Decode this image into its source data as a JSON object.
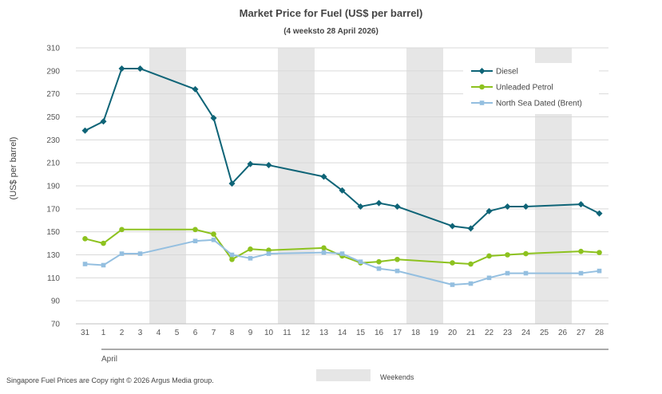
{
  "chart_data": {
    "type": "line",
    "title": "Market Price for Fuel (US$ per barrel)",
    "subtitle": "(4 weeksto 28 April 2026)",
    "ylabel": "(US$ per barrel)",
    "xlabel": "April",
    "ylim": [
      70,
      310
    ],
    "yticks": [
      70,
      90,
      110,
      130,
      150,
      170,
      190,
      210,
      230,
      250,
      270,
      290,
      310
    ],
    "categories": [
      "31",
      "1",
      "2",
      "3",
      "4",
      "5",
      "6",
      "7",
      "8",
      "9",
      "10",
      "11",
      "12",
      "13",
      "14",
      "15",
      "16",
      "17",
      "18",
      "19",
      "20",
      "21",
      "22",
      "23",
      "24",
      "25",
      "26",
      "27",
      "28"
    ],
    "weekend_spans": [
      [
        "4",
        "5"
      ],
      [
        "11",
        "12"
      ],
      [
        "18",
        "19"
      ],
      [
        "25",
        "26"
      ]
    ],
    "series": [
      {
        "name": "Diesel",
        "color": "#0e6477",
        "marker": "diamond",
        "points": [
          [
            "31",
            238
          ],
          [
            "1",
            246
          ],
          [
            "2",
            292
          ],
          [
            "3",
            292
          ],
          [
            "6",
            274
          ],
          [
            "7",
            249
          ],
          [
            "8",
            192
          ],
          [
            "9",
            209
          ],
          [
            "10",
            208
          ],
          [
            "13",
            198
          ],
          [
            "14",
            186
          ],
          [
            "15",
            172
          ],
          [
            "16",
            175
          ],
          [
            "17",
            172
          ],
          [
            "20",
            155
          ],
          [
            "21",
            153
          ],
          [
            "22",
            168
          ],
          [
            "23",
            172
          ],
          [
            "24",
            172
          ],
          [
            "27",
            174
          ],
          [
            "28",
            166
          ]
        ]
      },
      {
        "name": "Unleaded Petrol",
        "color": "#8dc21f",
        "marker": "circle",
        "points": [
          [
            "31",
            144
          ],
          [
            "1",
            140
          ],
          [
            "2",
            152
          ],
          [
            "6",
            152
          ],
          [
            "7",
            148
          ],
          [
            "8",
            126
          ],
          [
            "9",
            135
          ],
          [
            "10",
            134
          ],
          [
            "13",
            136
          ],
          [
            "14",
            129
          ],
          [
            "15",
            123
          ],
          [
            "16",
            124
          ],
          [
            "17",
            126
          ],
          [
            "20",
            123
          ],
          [
            "21",
            122
          ],
          [
            "22",
            129
          ],
          [
            "23",
            130
          ],
          [
            "24",
            131
          ],
          [
            "27",
            133
          ],
          [
            "28",
            132
          ]
        ]
      },
      {
        "name": "North Sea Dated (Brent)",
        "color": "#94bfe0",
        "marker": "square",
        "points": [
          [
            "31",
            122
          ],
          [
            "1",
            121
          ],
          [
            "2",
            131
          ],
          [
            "3",
            131
          ],
          [
            "6",
            142
          ],
          [
            "7",
            143
          ],
          [
            "8",
            130
          ],
          [
            "9",
            127
          ],
          [
            "10",
            131
          ],
          [
            "13",
            132
          ],
          [
            "14",
            131
          ],
          [
            "15",
            124
          ],
          [
            "16",
            118
          ],
          [
            "17",
            116
          ],
          [
            "20",
            104
          ],
          [
            "21",
            105
          ],
          [
            "22",
            110
          ],
          [
            "23",
            114
          ],
          [
            "24",
            114
          ],
          [
            "27",
            114
          ],
          [
            "28",
            116
          ]
        ]
      }
    ],
    "legend_position": "top-right",
    "weekends_label": "Weekends",
    "grid": true
  },
  "copyright": "Singapore Fuel Prices are Copy right © 2026 Argus Media group."
}
